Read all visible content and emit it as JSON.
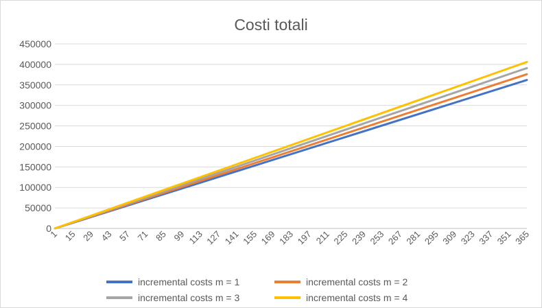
{
  "chart_data": {
    "type": "line",
    "title": "Costi totali",
    "xlabel": "",
    "ylabel": "",
    "x_range": [
      1,
      365
    ],
    "x_tick_labels": [
      "1",
      "15",
      "29",
      "43",
      "57",
      "71",
      "85",
      "99",
      "113",
      "127",
      "141",
      "155",
      "169",
      "183",
      "197",
      "211",
      "225",
      "239",
      "253",
      "267",
      "281",
      "295",
      "309",
      "323",
      "337",
      "351",
      "365"
    ],
    "ylim": [
      0,
      450000
    ],
    "y_tick_labels": [
      "0",
      "50000",
      "100000",
      "150000",
      "200000",
      "250000",
      "300000",
      "350000",
      "400000",
      "450000"
    ],
    "grid": "horizontal",
    "legend_position": "bottom",
    "series": [
      {
        "name": "incremental costs m = 1",
        "color": "#4472C4",
        "x": [
          1,
          365
        ],
        "values": [
          0,
          362000
        ]
      },
      {
        "name": "incremental costs m = 2",
        "color": "#ED7D31",
        "x": [
          1,
          365
        ],
        "values": [
          0,
          376000
        ]
      },
      {
        "name": "incremental costs m = 3",
        "color": "#A5A5A5",
        "x": [
          1,
          365
        ],
        "values": [
          0,
          391000
        ]
      },
      {
        "name": "incremental costs m = 4",
        "color": "#FFC000",
        "x": [
          1,
          365
        ],
        "values": [
          0,
          406000
        ]
      }
    ]
  }
}
